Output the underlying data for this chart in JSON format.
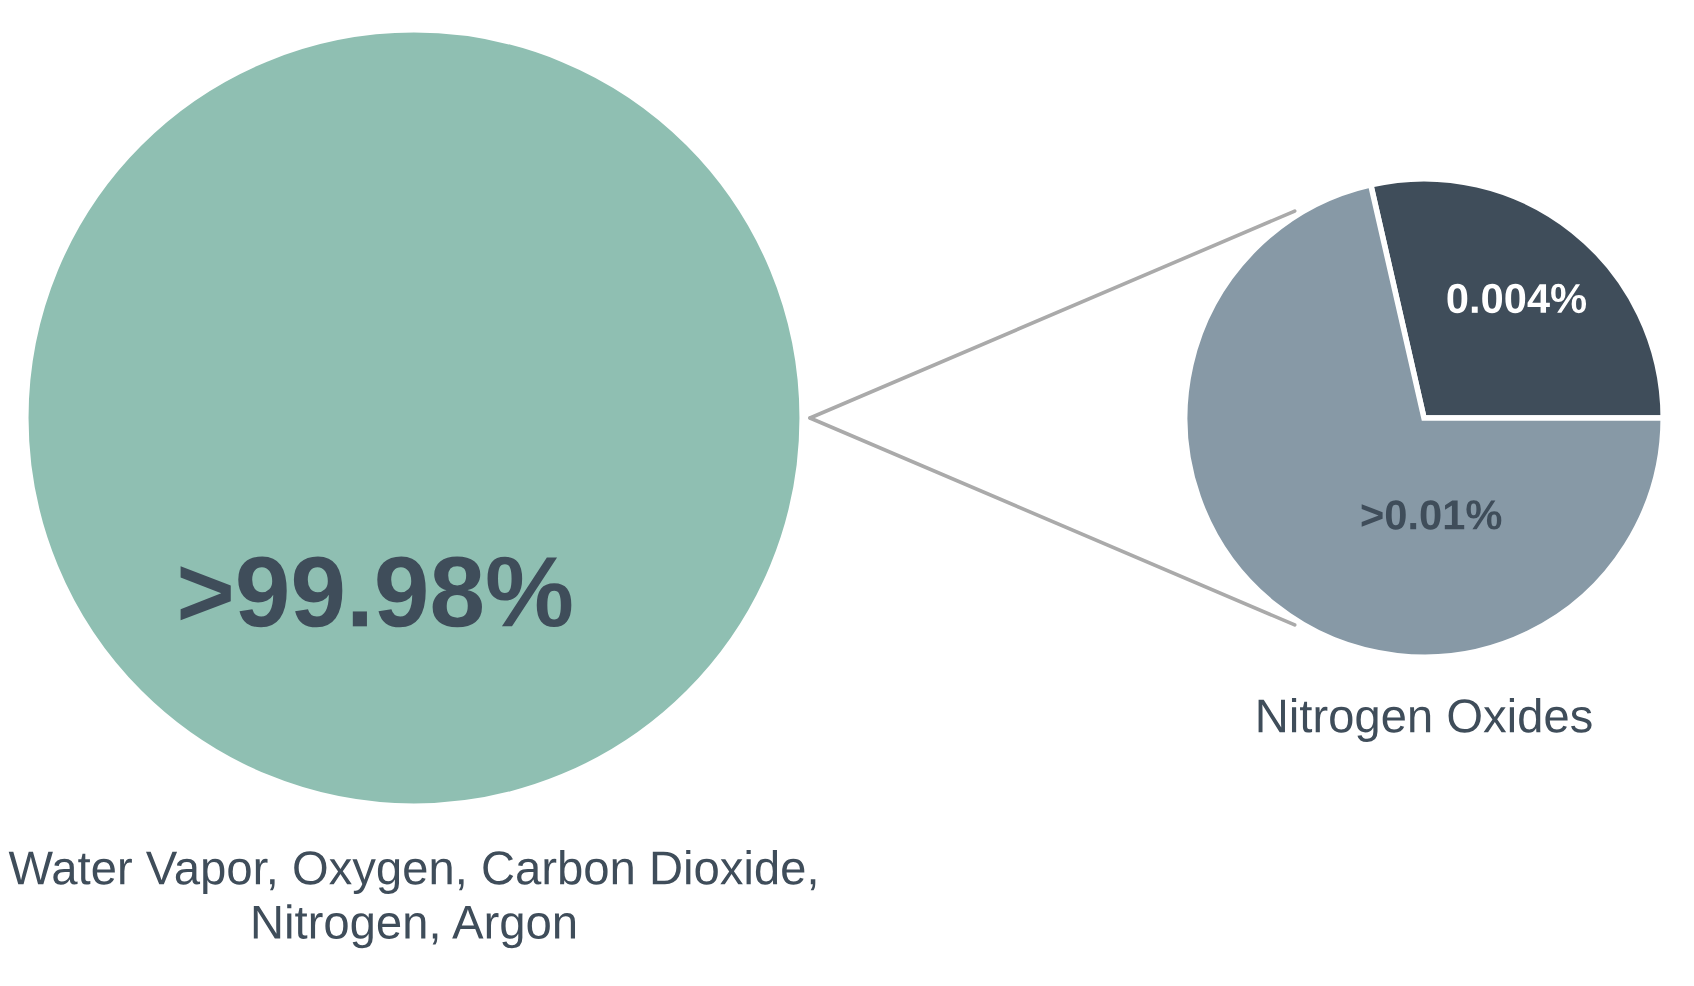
{
  "chart_data": [
    {
      "type": "pie",
      "title": "Water Vapor, Oxygen, Carbon Dioxide, Nitrogen, Argon",
      "categories": [
        null
      ],
      "values": [
        99.98
      ],
      "value_labels": [
        ">99.98%"
      ],
      "colors": [
        "#8fbfb2"
      ]
    },
    {
      "type": "pie",
      "title": "Nitrogen Oxides",
      "categories": [
        null,
        null
      ],
      "values": [
        0.004,
        0.01
      ],
      "value_labels": [
        "0.004%",
        ">0.01%"
      ],
      "colors": [
        "#3f4d5a",
        "#8799a6"
      ]
    }
  ]
}
